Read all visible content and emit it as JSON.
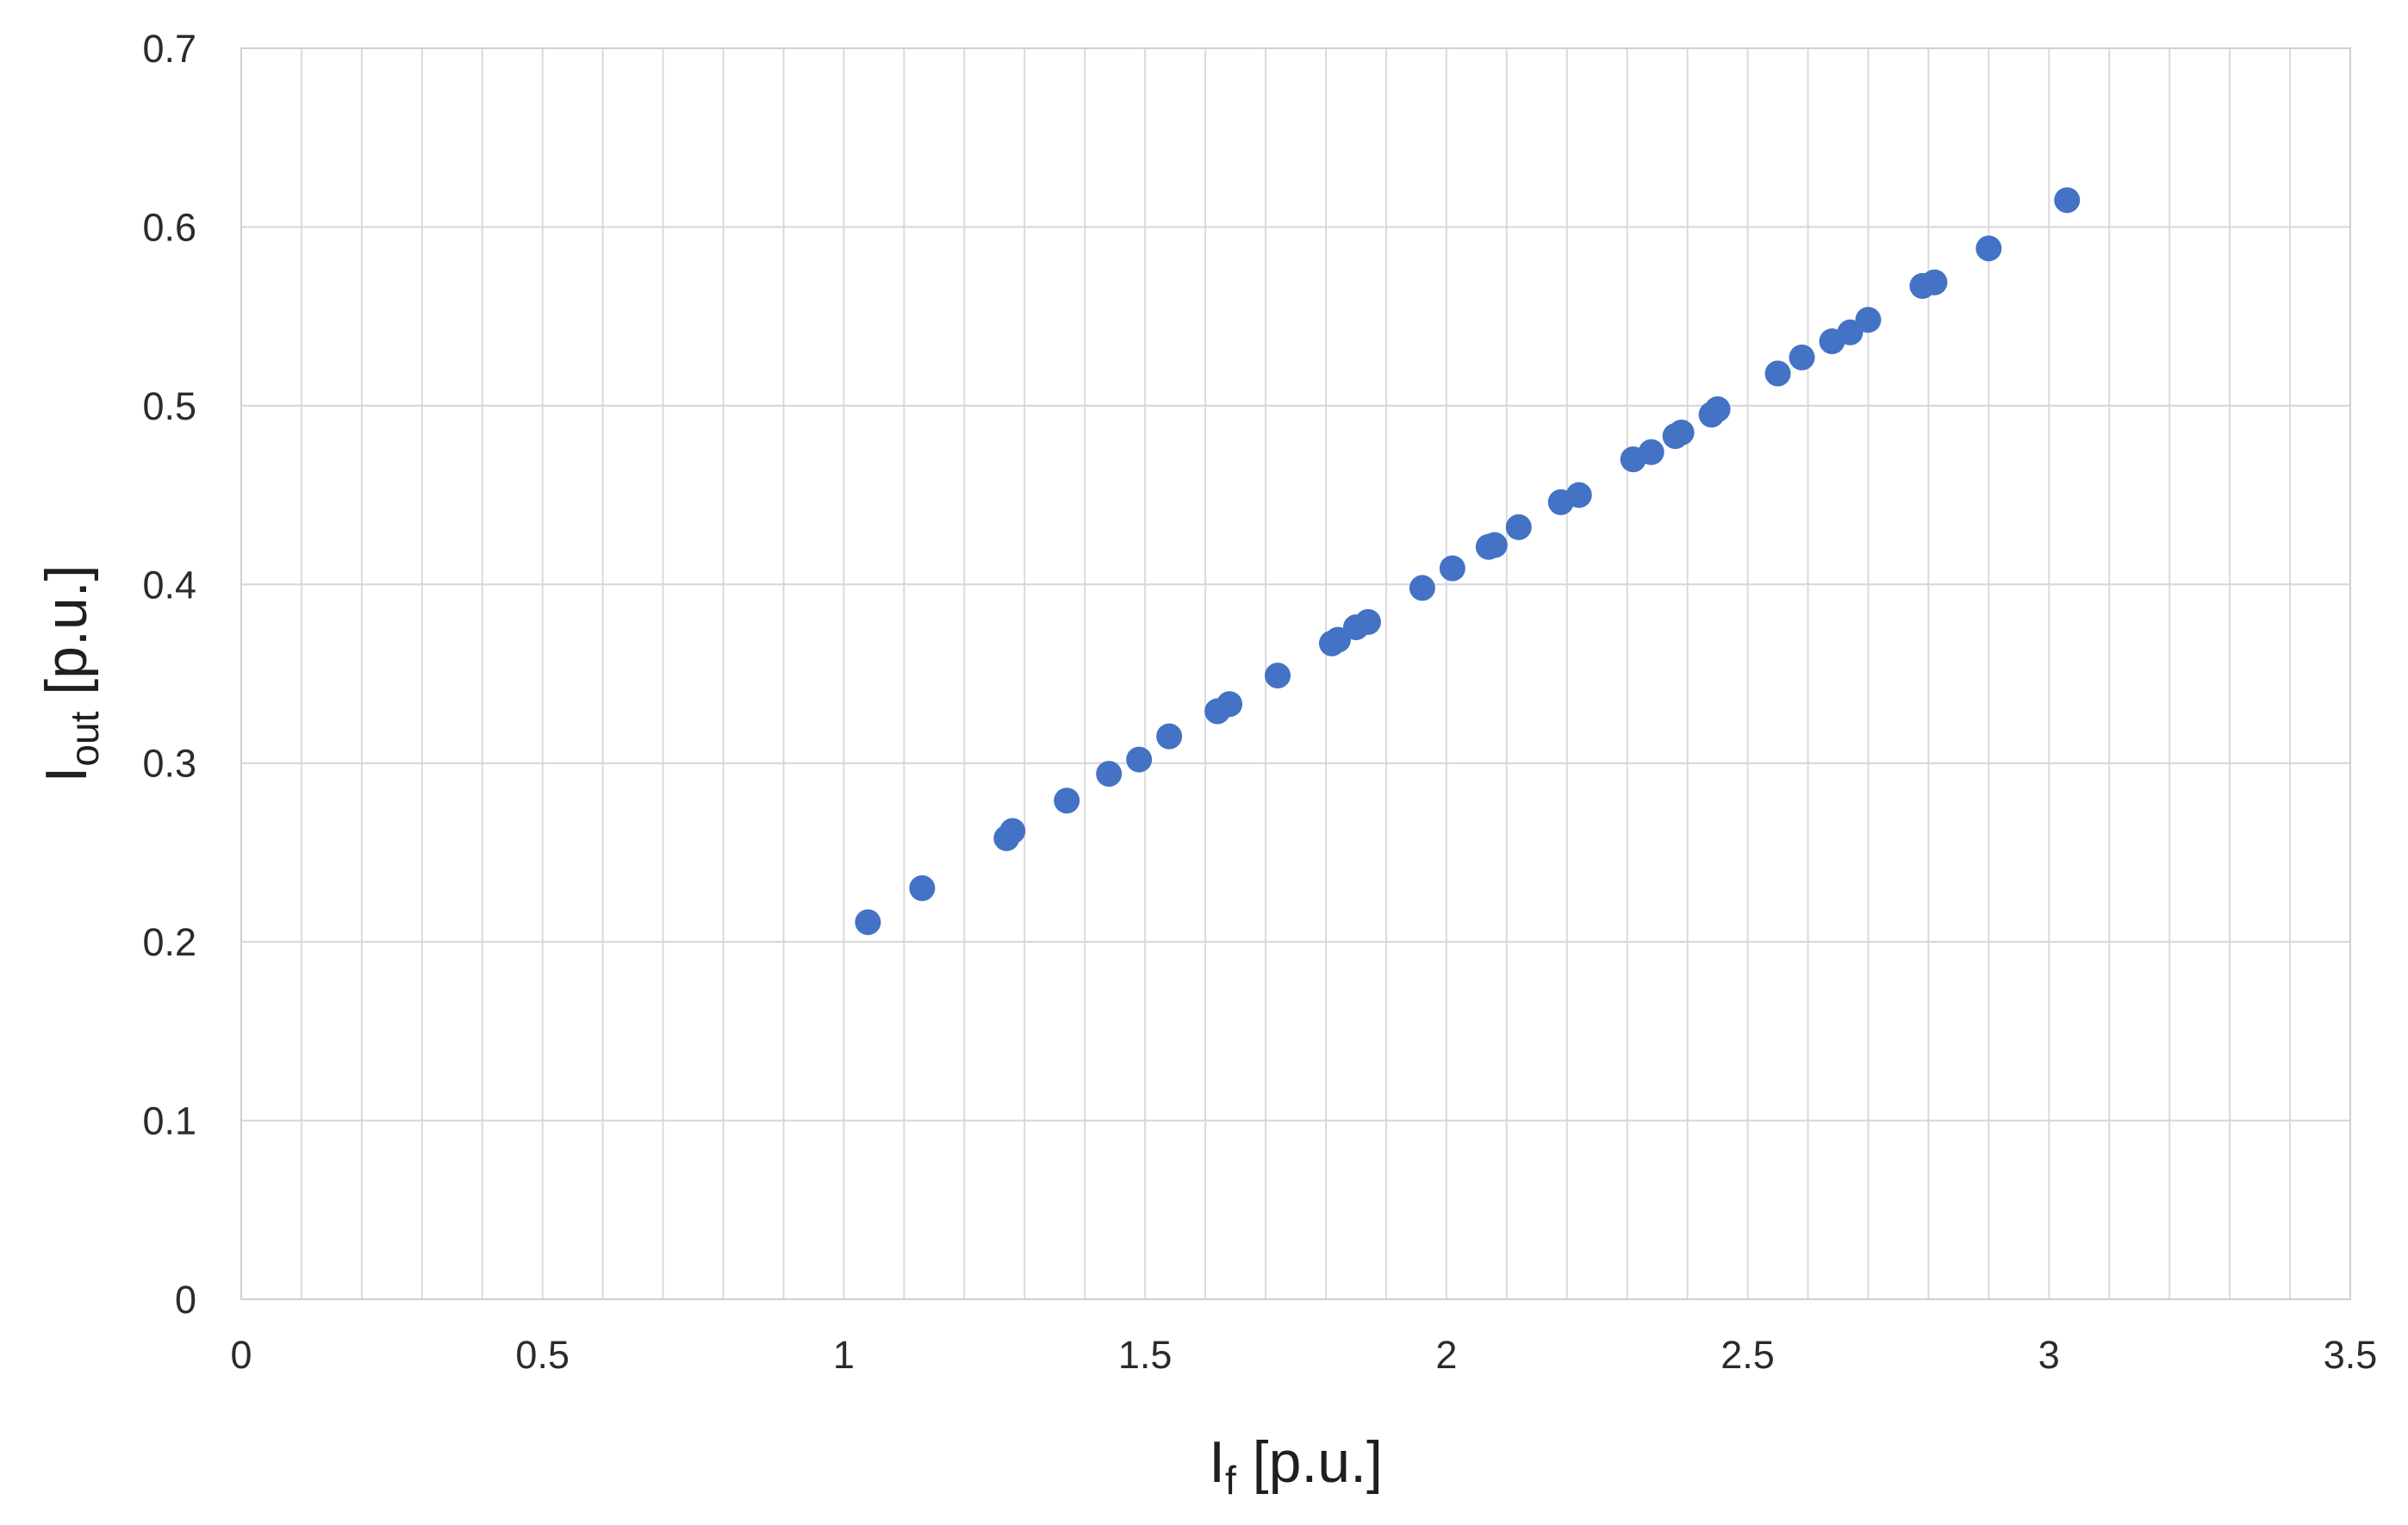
{
  "chart_data": {
    "type": "scatter",
    "title": "",
    "xlabel": {
      "main": "I",
      "sub": "f",
      "suffix": " [p.u.]"
    },
    "ylabel": {
      "main": "I",
      "sub": "out",
      "suffix": " [p.u.]"
    },
    "xlim": [
      0,
      3.5
    ],
    "ylim": [
      0,
      0.7
    ],
    "xticks": [
      "0",
      "0.5",
      "1",
      "1.5",
      "2",
      "2.5",
      "3",
      "3.5"
    ],
    "yticks": [
      "0",
      "0.1",
      "0.2",
      "0.3",
      "0.4",
      "0.5",
      "0.6",
      "0.7"
    ],
    "x_minor_step": 0.1,
    "grid": true,
    "legend": "none",
    "marker_color": "#4472C4",
    "series": [
      {
        "points": [
          [
            1.04,
            0.211
          ],
          [
            1.13,
            0.23
          ],
          [
            1.27,
            0.258
          ],
          [
            1.28,
            0.262
          ],
          [
            1.37,
            0.279
          ],
          [
            1.44,
            0.294
          ],
          [
            1.49,
            0.302
          ],
          [
            1.54,
            0.315
          ],
          [
            1.62,
            0.329
          ],
          [
            1.64,
            0.333
          ],
          [
            1.72,
            0.349
          ],
          [
            1.81,
            0.367
          ],
          [
            1.82,
            0.369
          ],
          [
            1.85,
            0.376
          ],
          [
            1.87,
            0.379
          ],
          [
            1.96,
            0.398
          ],
          [
            2.01,
            0.409
          ],
          [
            2.07,
            0.421
          ],
          [
            2.08,
            0.422
          ],
          [
            2.12,
            0.432
          ],
          [
            2.19,
            0.446
          ],
          [
            2.22,
            0.45
          ],
          [
            2.31,
            0.47
          ],
          [
            2.34,
            0.474
          ],
          [
            2.38,
            0.483
          ],
          [
            2.39,
            0.485
          ],
          [
            2.44,
            0.495
          ],
          [
            2.45,
            0.498
          ],
          [
            2.55,
            0.518
          ],
          [
            2.59,
            0.527
          ],
          [
            2.64,
            0.536
          ],
          [
            2.67,
            0.541
          ],
          [
            2.7,
            0.548
          ],
          [
            2.79,
            0.567
          ],
          [
            2.81,
            0.569
          ],
          [
            2.9,
            0.588
          ],
          [
            3.03,
            0.615
          ]
        ]
      }
    ]
  }
}
